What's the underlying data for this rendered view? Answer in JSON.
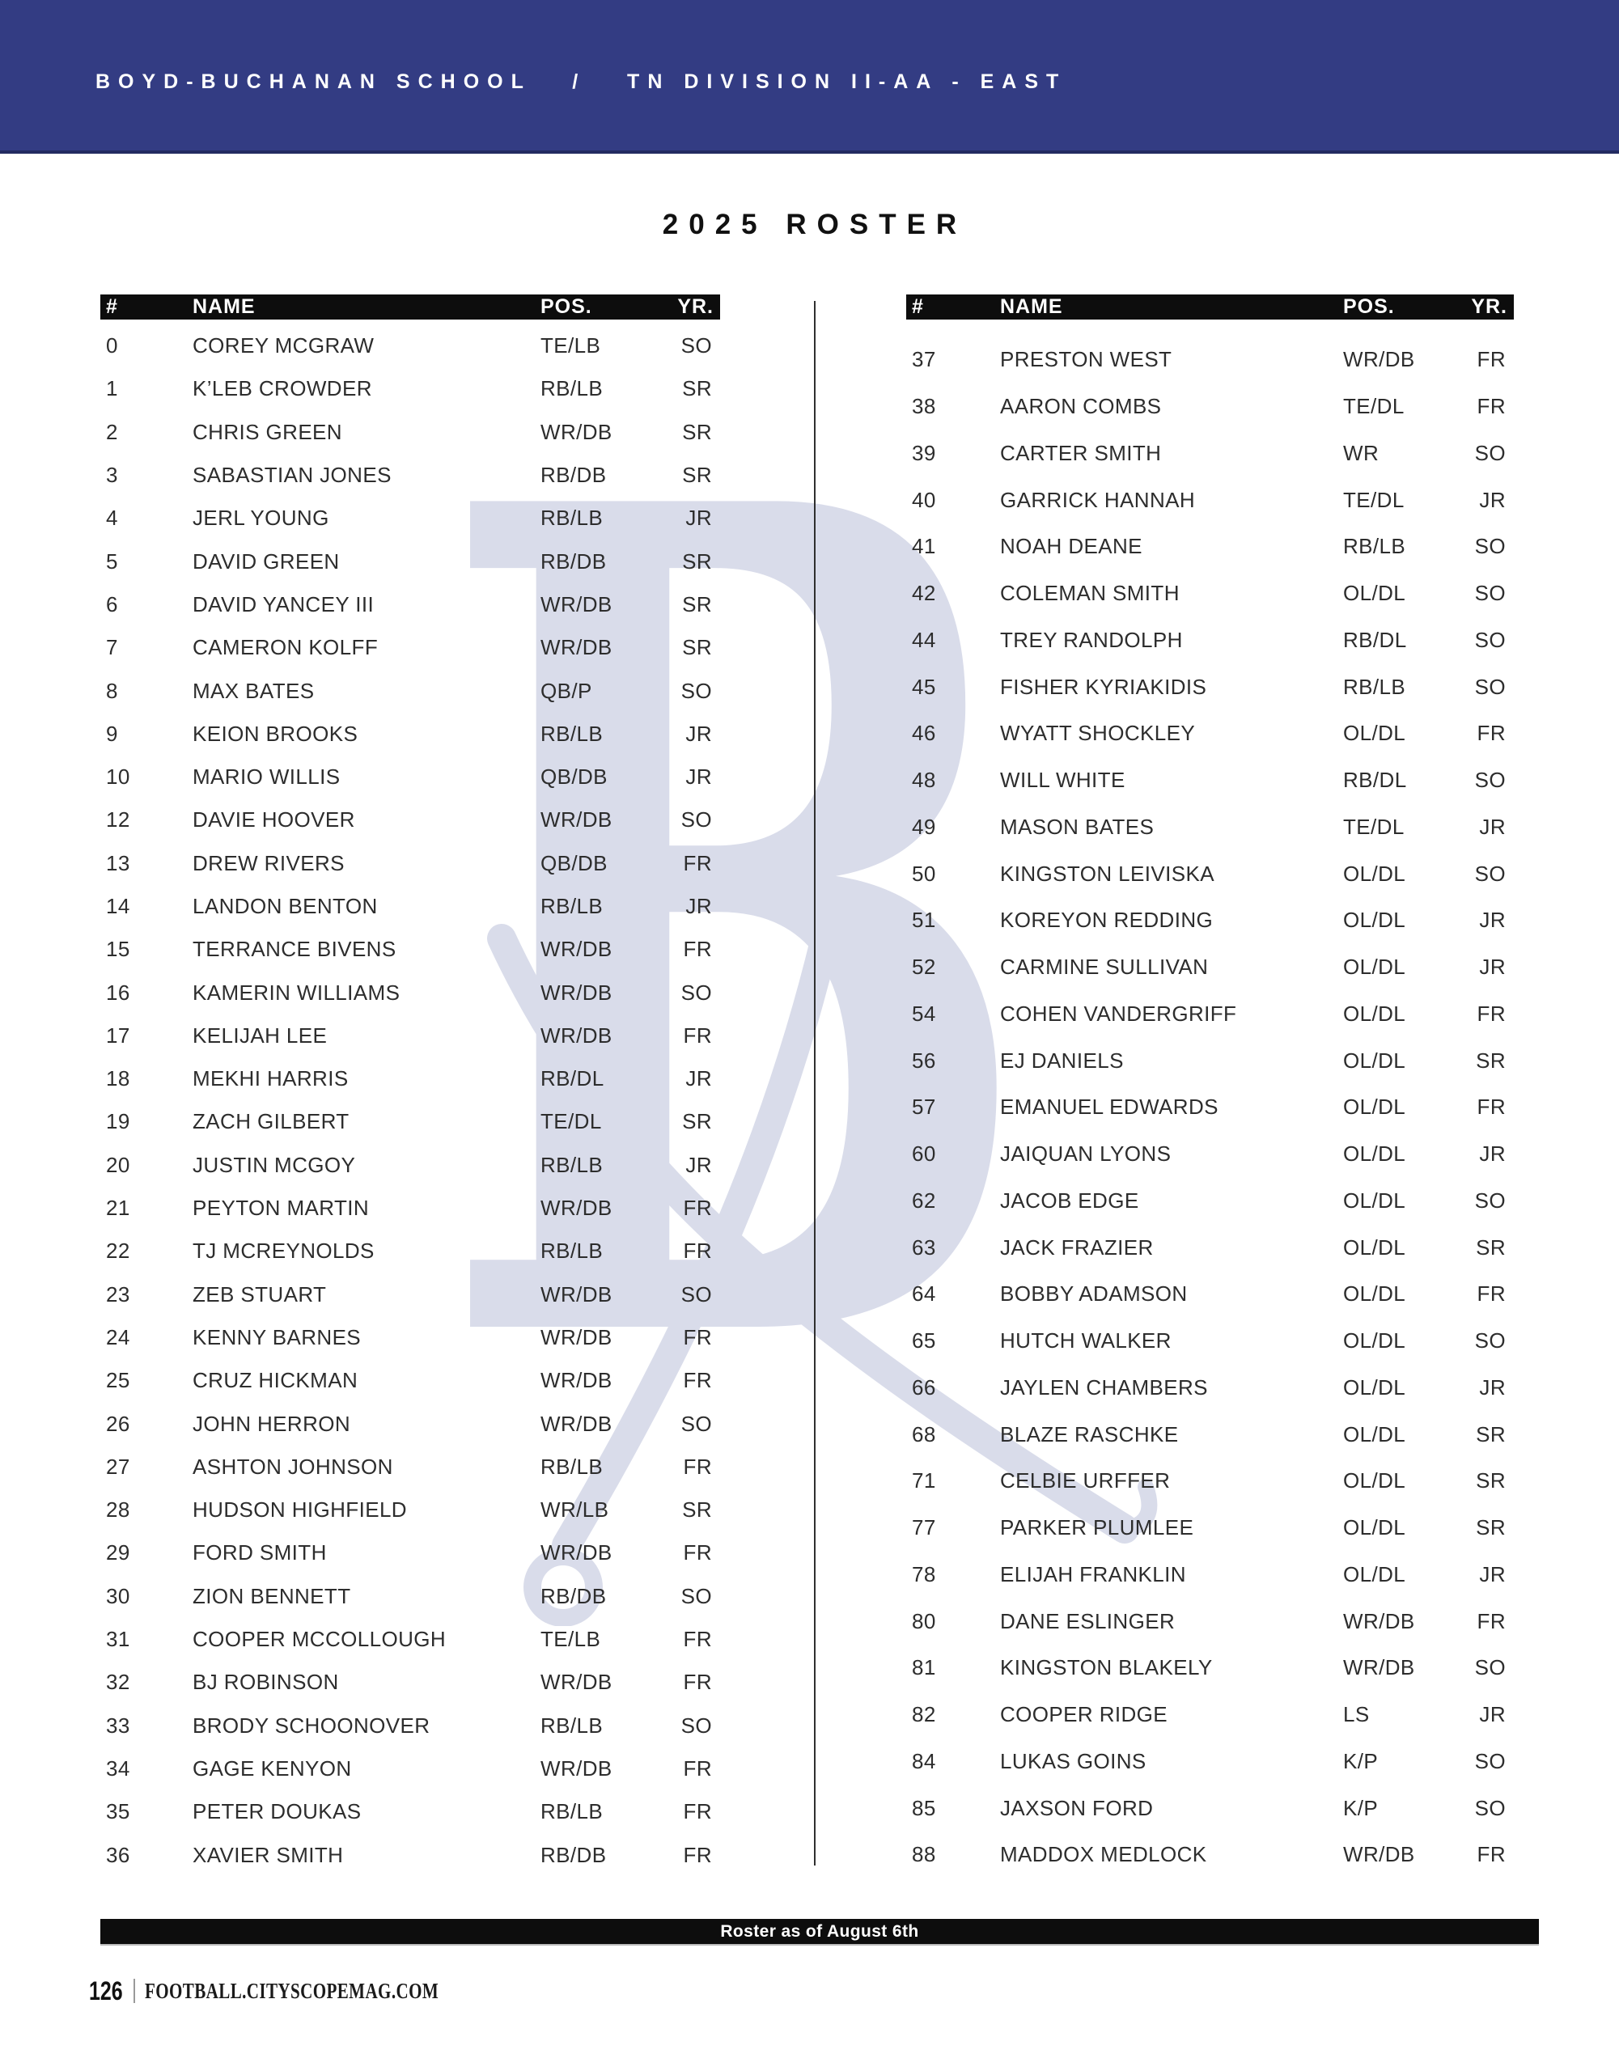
{
  "banner": {
    "text": "BOYD-BUCHANAN SCHOOL   /   TN DIVISION II-AA - EAST"
  },
  "title": "2025 ROSTER",
  "columns": [
    "#",
    "NAME",
    "POS.",
    "YR."
  ],
  "roster_left": [
    [
      "0",
      "COREY MCGRAW",
      "TE/LB",
      "SO"
    ],
    [
      "1",
      "K’LEB CROWDER",
      "RB/LB",
      "SR"
    ],
    [
      "2",
      "CHRIS GREEN",
      "WR/DB",
      "SR"
    ],
    [
      "3",
      "SABASTIAN JONES",
      "RB/DB",
      "SR"
    ],
    [
      "4",
      "JERL YOUNG",
      "RB/LB",
      "JR"
    ],
    [
      "5",
      "DAVID GREEN",
      "RB/DB",
      "SR"
    ],
    [
      "6",
      "DAVID YANCEY III",
      "WR/DB",
      "SR"
    ],
    [
      "7",
      "CAMERON KOLFF",
      "WR/DB",
      "SR"
    ],
    [
      "8",
      "MAX BATES",
      "QB/P",
      "SO"
    ],
    [
      "9",
      "KEION BROOKS",
      "RB/LB",
      "JR"
    ],
    [
      "10",
      "MARIO WILLIS",
      "QB/DB",
      "JR"
    ],
    [
      "12",
      "DAVIE HOOVER",
      "WR/DB",
      "SO"
    ],
    [
      "13",
      "DREW RIVERS",
      "QB/DB",
      "FR"
    ],
    [
      "14",
      "LANDON BENTON",
      "RB/LB",
      "JR"
    ],
    [
      "15",
      "TERRANCE BIVENS",
      "WR/DB",
      "FR"
    ],
    [
      "16",
      "KAMERIN WILLIAMS",
      "WR/DB",
      "SO"
    ],
    [
      "17",
      "KELIJAH LEE",
      "WR/DB",
      "FR"
    ],
    [
      "18",
      "MEKHI HARRIS",
      "RB/DL",
      "JR"
    ],
    [
      "19",
      "ZACH GILBERT",
      "TE/DL",
      "SR"
    ],
    [
      "20",
      "JUSTIN MCGOY",
      "RB/LB",
      "JR"
    ],
    [
      "21",
      "PEYTON MARTIN",
      "WR/DB",
      "FR"
    ],
    [
      "22",
      "TJ MCREYNOLDS",
      "RB/LB",
      "FR"
    ],
    [
      "23",
      "ZEB STUART",
      "WR/DB",
      "SO"
    ],
    [
      "24",
      "KENNY BARNES",
      "WR/DB",
      "FR"
    ],
    [
      "25",
      "CRUZ HICKMAN",
      "WR/DB",
      "FR"
    ],
    [
      "26",
      "JOHN HERRON",
      "WR/DB",
      "SO"
    ],
    [
      "27",
      "ASHTON JOHNSON",
      "RB/LB",
      "FR"
    ],
    [
      "28",
      "HUDSON HIGHFIELD",
      "WR/LB",
      "SR"
    ],
    [
      "29",
      "FORD SMITH",
      "WR/DB",
      "FR"
    ],
    [
      "30",
      "ZION BENNETT",
      "RB/DB",
      "SO"
    ],
    [
      "31",
      "COOPER MCCOLLOUGH",
      "TE/LB",
      "FR"
    ],
    [
      "32",
      "BJ ROBINSON",
      "WR/DB",
      "FR"
    ],
    [
      "33",
      "BRODY SCHOONOVER",
      "RB/LB",
      "SO"
    ],
    [
      "34",
      "GAGE KENYON",
      "WR/DB",
      "FR"
    ],
    [
      "35",
      "PETER DOUKAS",
      "RB/LB",
      "FR"
    ],
    [
      "36",
      "XAVIER SMITH",
      "RB/DB",
      "FR"
    ]
  ],
  "roster_right": [
    [
      "37",
      "PRESTON WEST",
      "WR/DB",
      "FR"
    ],
    [
      "38",
      "AARON COMBS",
      "TE/DL",
      "FR"
    ],
    [
      "39",
      "CARTER SMITH",
      "WR",
      "SO"
    ],
    [
      "40",
      "GARRICK HANNAH",
      "TE/DL",
      "JR"
    ],
    [
      "41",
      "NOAH DEANE",
      "RB/LB",
      "SO"
    ],
    [
      "42",
      "COLEMAN SMITH",
      "OL/DL",
      "SO"
    ],
    [
      "44",
      "TREY RANDOLPH",
      "RB/DL",
      "SO"
    ],
    [
      "45",
      "FISHER KYRIAKIDIS",
      "RB/LB",
      "SO"
    ],
    [
      "46",
      "WYATT SHOCKLEY",
      "OL/DL",
      "FR"
    ],
    [
      "48",
      "WILL WHITE",
      "RB/DL",
      "SO"
    ],
    [
      "49",
      "MASON BATES",
      "TE/DL",
      "JR"
    ],
    [
      "50",
      "KINGSTON LEIVISKA",
      "OL/DL",
      "SO"
    ],
    [
      "51",
      "KOREYON REDDING",
      "OL/DL",
      "JR"
    ],
    [
      "52",
      "CARMINE SULLIVAN",
      "OL/DL",
      "JR"
    ],
    [
      "54",
      "COHEN VANDERGRIFF",
      "OL/DL",
      "FR"
    ],
    [
      "56",
      "EJ DANIELS",
      "OL/DL",
      "SR"
    ],
    [
      "57",
      "EMANUEL EDWARDS",
      "OL/DL",
      "FR"
    ],
    [
      "60",
      "JAIQUAN LYONS",
      "OL/DL",
      "JR"
    ],
    [
      "62",
      "JACOB EDGE",
      "OL/DL",
      "SO"
    ],
    [
      "63",
      "JACK FRAZIER",
      "OL/DL",
      "SR"
    ],
    [
      "64",
      "BOBBY ADAMSON",
      "OL/DL",
      "FR"
    ],
    [
      "65",
      "HUTCH WALKER",
      "OL/DL",
      "SO"
    ],
    [
      "66",
      "JAYLEN CHAMBERS",
      "OL/DL",
      "JR"
    ],
    [
      "68",
      "BLAZE RASCHKE",
      "OL/DL",
      "SR"
    ],
    [
      "71",
      "CELBIE URFFER",
      "OL/DL",
      "SR"
    ],
    [
      "77",
      "PARKER PLUMLEE",
      "OL/DL",
      "SR"
    ],
    [
      "78",
      "ELIJAH FRANKLIN",
      "OL/DL",
      "JR"
    ],
    [
      "80",
      "DANE ESLINGER",
      "WR/DB",
      "FR"
    ],
    [
      "81",
      "KINGSTON BLAKELY",
      "WR/DB",
      "SO"
    ],
    [
      "82",
      "COOPER RIDGE",
      "LS",
      "JR"
    ],
    [
      "84",
      "LUKAS GOINS",
      "K/P",
      "SO"
    ],
    [
      "85",
      "JAXSON FORD",
      "K/P",
      "SO"
    ],
    [
      "88",
      "MADDOX MEDLOCK",
      "WR/DB",
      "FR"
    ]
  ],
  "note": "Roster as of August 6th",
  "footer": {
    "page": "126",
    "separator": "|",
    "site": "FOOTBALL.CITYSCOPEMAG.COM"
  },
  "icons": {
    "watermark": "blackletter-B-with-crossed-sabers"
  },
  "colors": {
    "banner_bg": "#333c83",
    "bar_bg": "#0d0d0d",
    "watermark": "#d9dcea",
    "text": "#2d2d2d"
  }
}
